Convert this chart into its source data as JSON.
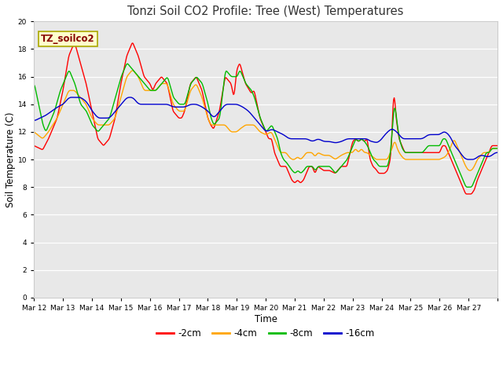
{
  "title": "Tonzi Soil CO2 Profile: Tree (West) Temperatures",
  "xlabel": "Time",
  "ylabel": "Soil Temperature (C)",
  "ylim": [
    0,
    20
  ],
  "yticks": [
    0,
    2,
    4,
    6,
    8,
    10,
    12,
    14,
    16,
    18,
    20
  ],
  "bg_color": "#e8e8e8",
  "legend_label": "TZ_soilco2",
  "legend_box_color": "#ffffcc",
  "legend_box_edge": "#aaa800",
  "series_colors": [
    "#ff0000",
    "#ffa500",
    "#00bb00",
    "#0000cc"
  ],
  "series_labels": [
    "-2cm",
    "-4cm",
    "-8cm",
    "-16cm"
  ],
  "line_width": 1.0,
  "x_tick_labels": [
    "Mar 12",
    "Mar 13",
    "Mar 14",
    "Mar 15",
    "Mar 16",
    "Mar 17",
    "Mar 18",
    "Mar 19",
    "Mar 20",
    "Mar 21",
    "Mar 22",
    "Mar 23",
    "Mar 24",
    "Mar 25",
    "Mar 26",
    "Mar 27"
  ],
  "n_days": 16,
  "pts_per_day": 48
}
